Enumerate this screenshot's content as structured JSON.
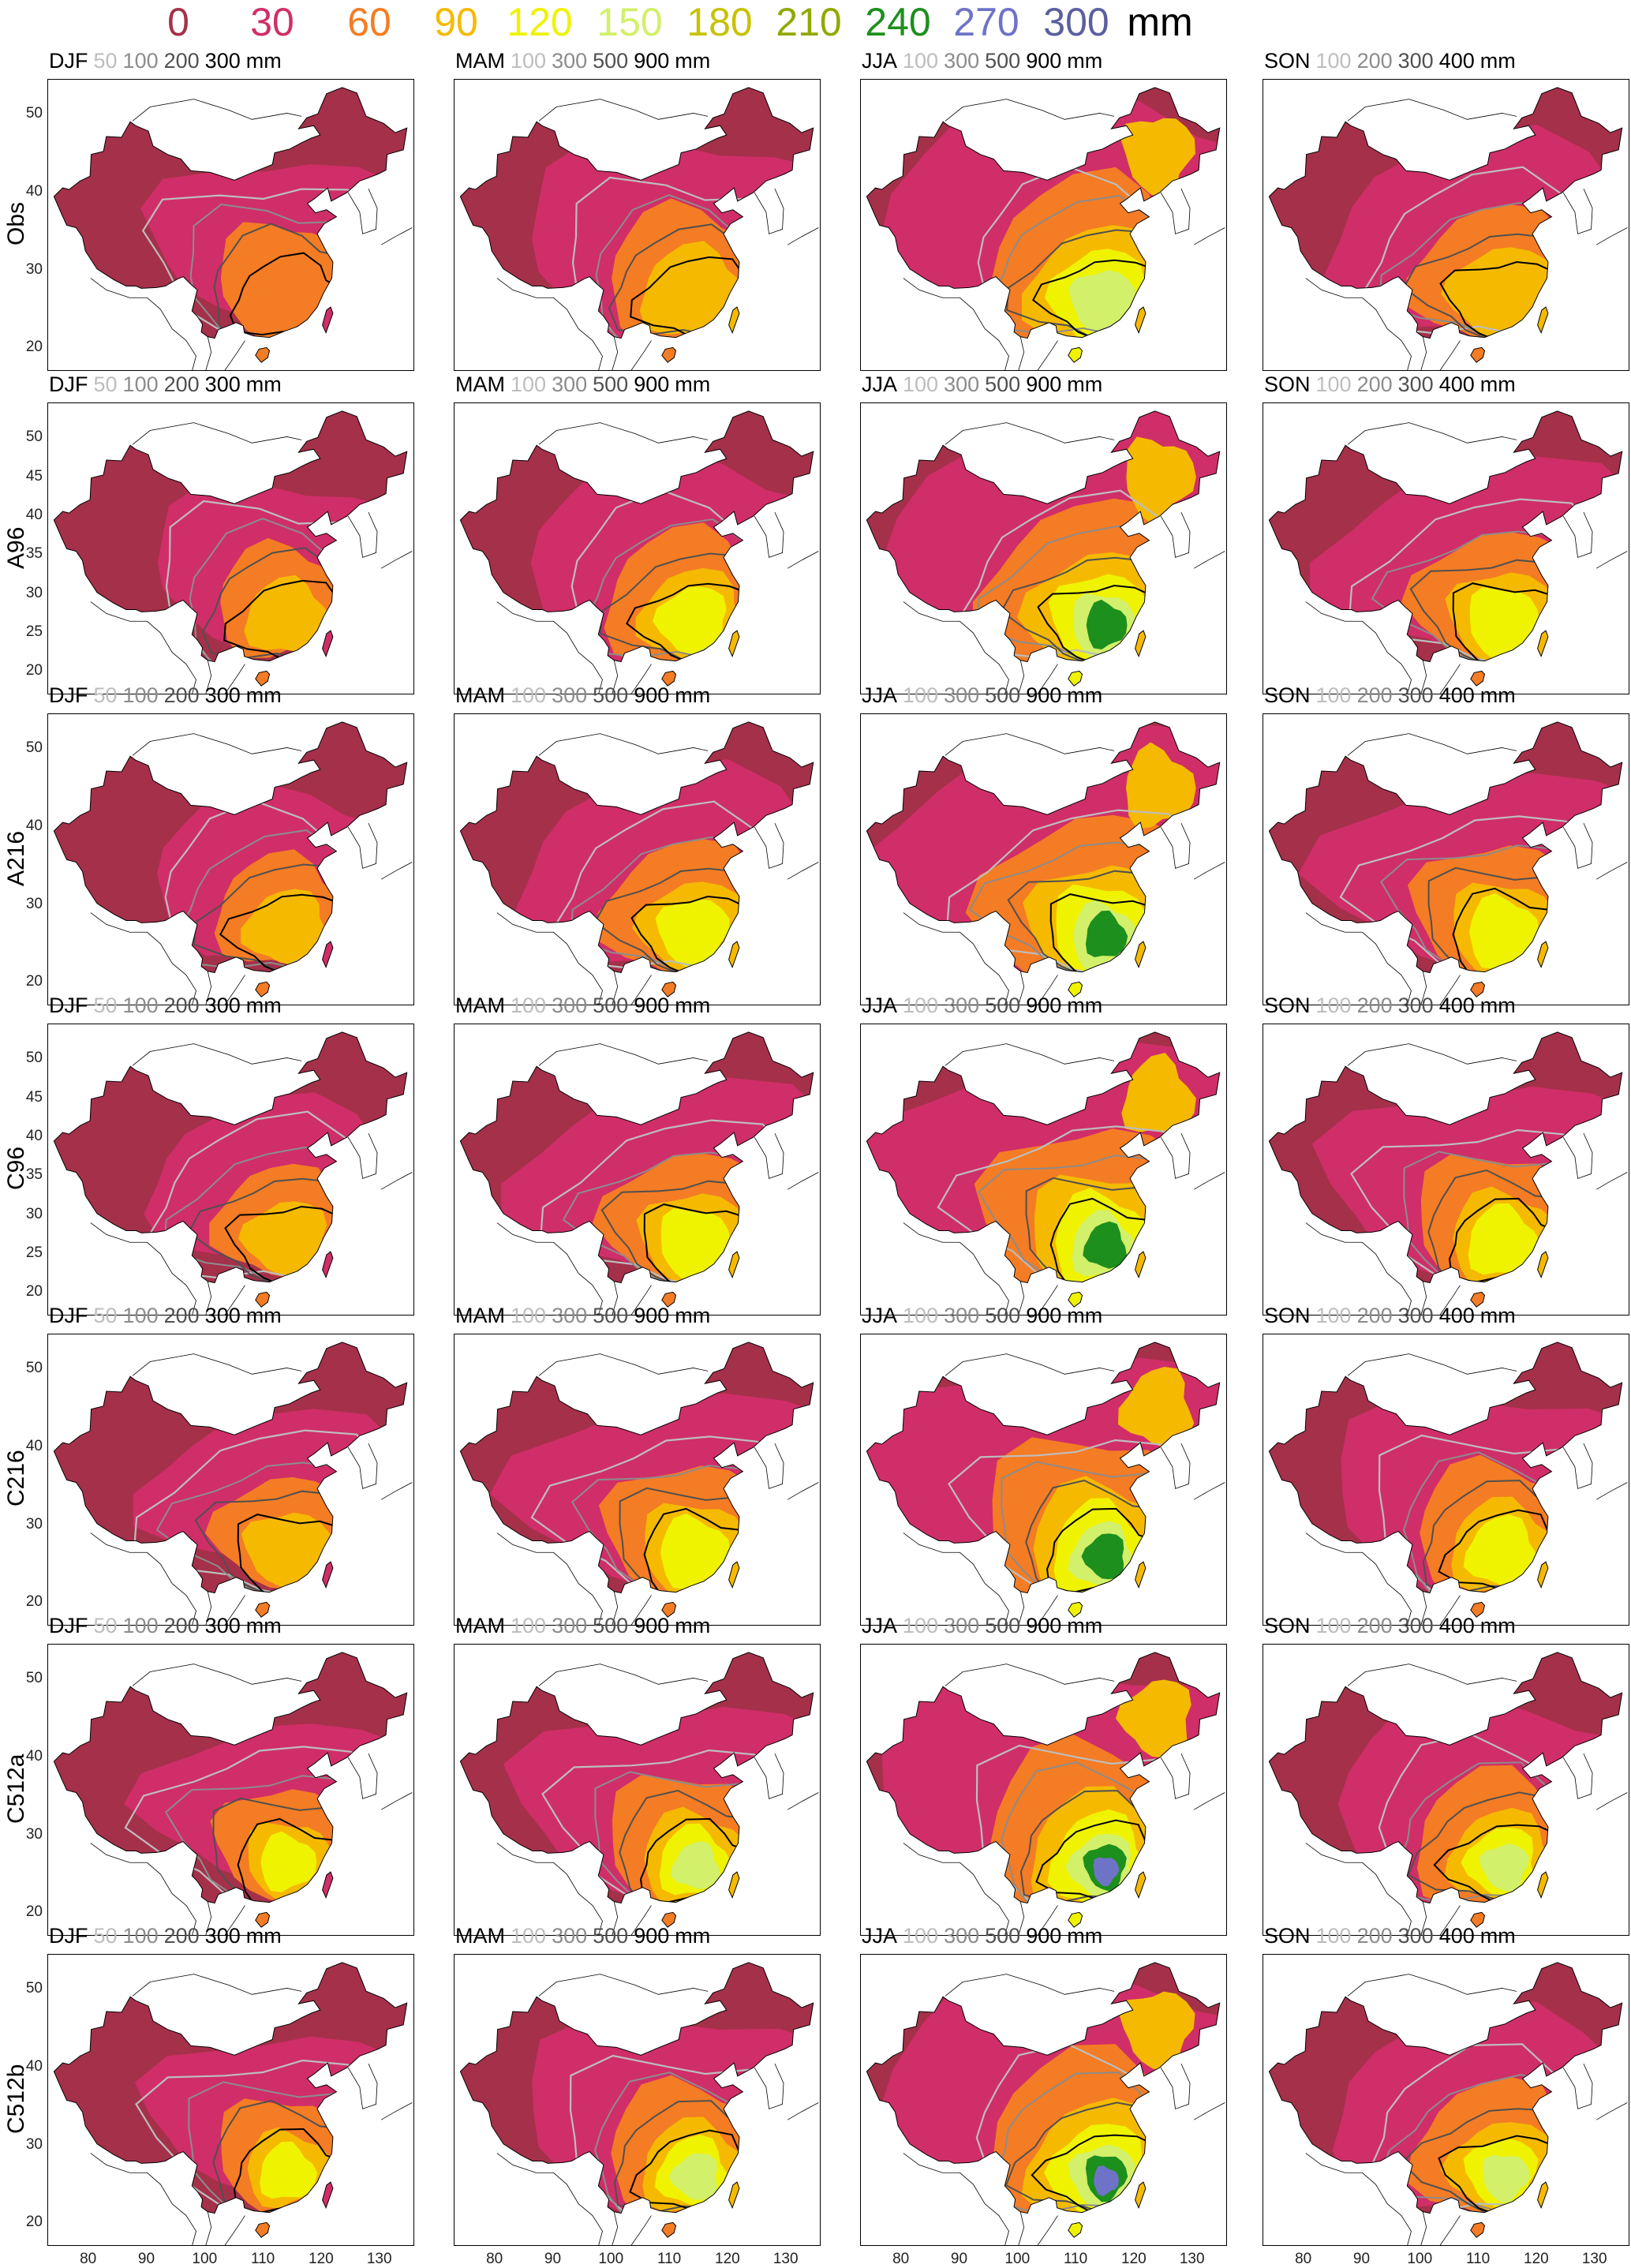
{
  "legend": {
    "items": [
      {
        "label": "0",
        "color": "#A5304A"
      },
      {
        "label": "30",
        "color": "#D02E68"
      },
      {
        "label": "60",
        "color": "#F47C24"
      },
      {
        "label": "90",
        "color": "#F5BA00"
      },
      {
        "label": "120",
        "color": "#EFF300"
      },
      {
        "label": "150",
        "color": "#D2F06A"
      },
      {
        "label": "180",
        "color": "#C8C200"
      },
      {
        "label": "210",
        "color": "#92A800"
      },
      {
        "label": "240",
        "color": "#1D8F1D"
      },
      {
        "label": "270",
        "color": "#6E73C8"
      },
      {
        "label": "300",
        "color": "#5A5F9E"
      },
      {
        "label": "mm",
        "color": "#000000"
      }
    ]
  },
  "seasons": [
    {
      "name": "DJF",
      "levels": [
        "50",
        "100",
        "200",
        "300"
      ],
      "units": "mm"
    },
    {
      "name": "MAM",
      "levels": [
        "100",
        "300",
        "500",
        "900"
      ],
      "units": "mm"
    },
    {
      "name": "JJA",
      "levels": [
        "100",
        "300",
        "500",
        "900"
      ],
      "units": "mm"
    },
    {
      "name": "SON",
      "levels": [
        "100",
        "200",
        "300",
        "400"
      ],
      "units": "mm"
    }
  ],
  "contour_colors": [
    "#BDBDBD",
    "#8C8C8C",
    "#505050",
    "#000000"
  ],
  "land_colors": {
    "outline": "#000000",
    "none": "#FFFFFF"
  },
  "rows": [
    {
      "label": "Obs",
      "yticks": [
        "50",
        "40",
        "30",
        "20"
      ]
    },
    {
      "label": "A96",
      "yticks": [
        "50",
        "45",
        "40",
        "35",
        "30",
        "25",
        "20"
      ]
    },
    {
      "label": "A216",
      "yticks": [
        "50",
        "40",
        "30",
        "20"
      ]
    },
    {
      "label": "C96",
      "yticks": [
        "50",
        "45",
        "40",
        "35",
        "30",
        "25",
        "20"
      ]
    },
    {
      "label": "C216",
      "yticks": [
        "50",
        "40",
        "30",
        "20"
      ]
    },
    {
      "label": "C512a",
      "yticks": [
        "50",
        "40",
        "30",
        "20"
      ]
    },
    {
      "label": "C512b",
      "yticks": [
        "50",
        "40",
        "30",
        "20"
      ]
    }
  ],
  "xticks": [
    "80",
    "90",
    "100",
    "110",
    "120",
    "130"
  ],
  "wet_level": [
    1,
    2,
    2,
    2,
    2,
    3,
    3
  ]
}
